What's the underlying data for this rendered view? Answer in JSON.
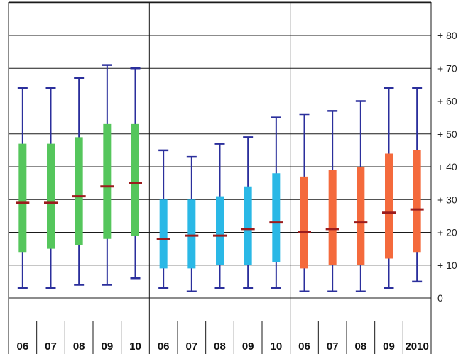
{
  "chart_data": {
    "type": "boxplot",
    "title": "",
    "xlabel": "",
    "ylabel": "",
    "ylim": [
      -10,
      90
    ],
    "y_ticks": [
      "0",
      "+ 10",
      "+ 20",
      "+ 30",
      "+ 40",
      "+ 50",
      "+ 60",
      "+ 70",
      "+ 80"
    ],
    "y_tick_values": [
      0,
      10,
      20,
      30,
      40,
      50,
      60,
      70,
      80
    ],
    "grid": true,
    "legend": "none",
    "median_color": "#9b1c1c",
    "whisker_color": "#2b2f9c",
    "groups": [
      {
        "color": "#55c65c",
        "categories": [
          "06",
          "07",
          "08",
          "09",
          "10"
        ],
        "min": [
          3,
          3,
          4,
          4,
          6
        ],
        "q1": [
          14,
          15,
          16,
          18,
          19
        ],
        "median": [
          29,
          29,
          31,
          34,
          35
        ],
        "q3": [
          47,
          47,
          49,
          53,
          53
        ],
        "max": [
          64,
          64,
          67,
          71,
          70
        ]
      },
      {
        "color": "#2ab8e6",
        "categories": [
          "06",
          "07",
          "08",
          "09",
          "10"
        ],
        "min": [
          3,
          2,
          3,
          3,
          3
        ],
        "q1": [
          9,
          9,
          10,
          10,
          11
        ],
        "median": [
          18,
          19,
          19,
          21,
          23
        ],
        "q3": [
          30,
          30,
          31,
          34,
          38
        ],
        "max": [
          45,
          43,
          47,
          49,
          55
        ]
      },
      {
        "color": "#f46a3c",
        "categories": [
          "06",
          "07",
          "08",
          "09",
          "2010"
        ],
        "min": [
          2,
          2,
          2,
          3,
          5
        ],
        "q1": [
          9,
          10,
          10,
          12,
          14
        ],
        "median": [
          20,
          21,
          23,
          26,
          27
        ],
        "q3": [
          37,
          39,
          40,
          44,
          45
        ],
        "max": [
          56,
          57,
          60,
          64,
          64
        ]
      }
    ]
  }
}
